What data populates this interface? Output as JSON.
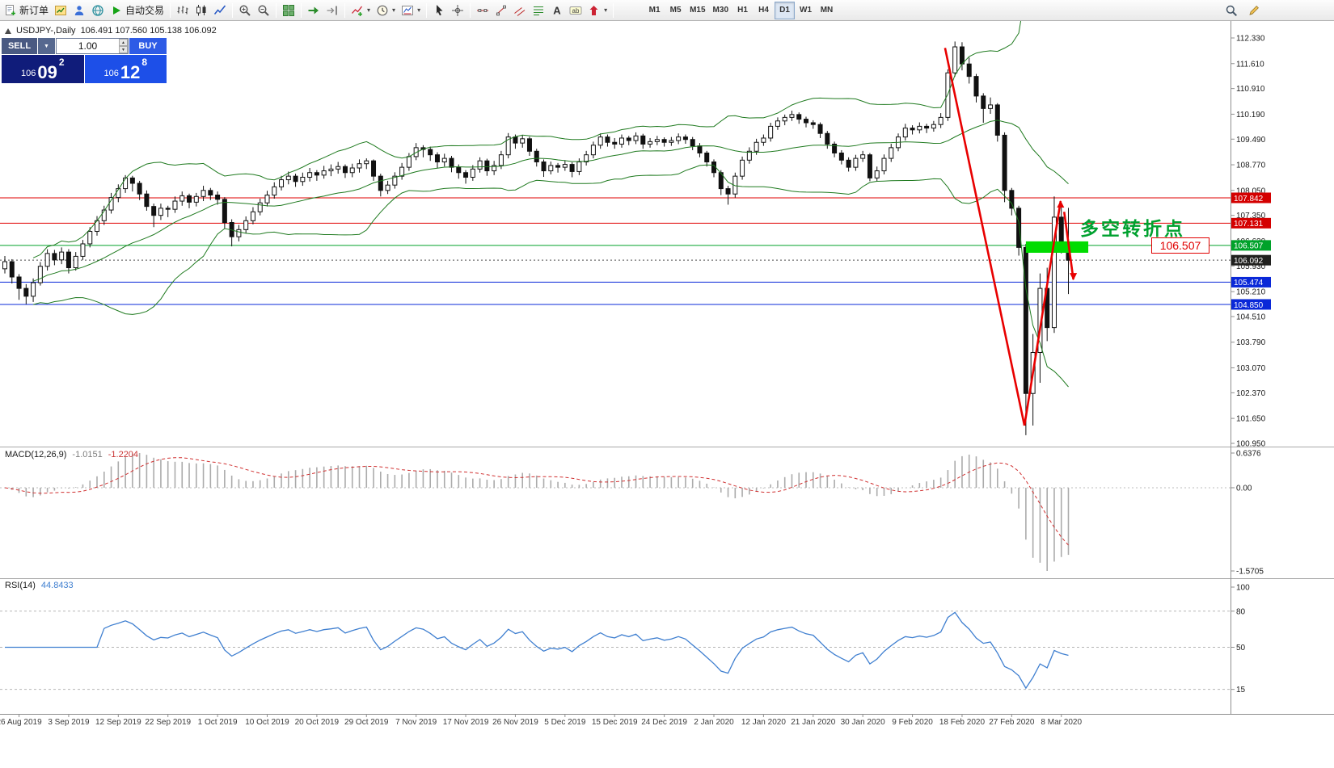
{
  "toolbar": {
    "groups": [
      {
        "items": [
          {
            "name": "new-order-button",
            "icon": "new-order",
            "label": "新订单"
          },
          {
            "name": "market-watch-button",
            "icon": "market-watch"
          },
          {
            "name": "navigator-button",
            "icon": "navigator"
          },
          {
            "name": "community-button",
            "icon": "globe"
          },
          {
            "name": "autotrading-button",
            "icon": "play",
            "label": "自动交易"
          }
        ]
      },
      {
        "items": [
          {
            "name": "bar-chart-button",
            "icon": "bars"
          },
          {
            "name": "candlestick-chart-button",
            "icon": "candles"
          },
          {
            "name": "line-chart-button",
            "icon": "linechart"
          }
        ]
      },
      {
        "items": [
          {
            "name": "zoom-in-button",
            "icon": "zoom-in"
          },
          {
            "name": "zoom-out-button",
            "icon": "zoom-out"
          }
        ]
      },
      {
        "items": [
          {
            "name": "tile-windows-button",
            "icon": "tile"
          }
        ]
      },
      {
        "items": [
          {
            "name": "auto-scroll-button",
            "icon": "autoscroll"
          },
          {
            "name": "chart-shift-button",
            "icon": "shift"
          }
        ]
      },
      {
        "items": [
          {
            "name": "indicators-button",
            "icon": "indicator",
            "caret": true
          },
          {
            "name": "periods-button",
            "icon": "clock",
            "caret": true
          },
          {
            "name": "templates-button",
            "icon": "template",
            "caret": true
          }
        ]
      },
      {
        "items": [
          {
            "name": "cursor-button",
            "icon": "cursor"
          },
          {
            "name": "crosshair-button",
            "icon": "crosshair"
          }
        ]
      },
      {
        "items": [
          {
            "name": "horizontal-line-button",
            "icon": "hline"
          },
          {
            "name": "trendline-button",
            "icon": "trendline"
          },
          {
            "name": "channel-button",
            "icon": "channel"
          },
          {
            "name": "fibonacci-button",
            "icon": "fibo"
          },
          {
            "name": "text-button",
            "icon": "textA"
          },
          {
            "name": "text-label-button",
            "icon": "label"
          },
          {
            "name": "arrows-button",
            "icon": "arrowobj",
            "caret": true
          }
        ]
      }
    ],
    "timeframes": [
      "M1",
      "M5",
      "M15",
      "M30",
      "H1",
      "H4",
      "D1",
      "W1",
      "MN"
    ],
    "active_timeframe": "D1",
    "right_icons": [
      {
        "name": "search-button",
        "icon": "search"
      },
      {
        "name": "quick-edit-button",
        "icon": "edit"
      }
    ]
  },
  "trade_panel": {
    "sell_label": "SELL",
    "buy_label": "BUY",
    "volume": "1.00",
    "sell_price_main": "106",
    "sell_price_big": "09",
    "sell_price_sup": "2",
    "buy_price_main": "106",
    "buy_price_big": "12",
    "buy_price_sup": "8",
    "colors": {
      "sell_button": "#4a5a82",
      "volume_dropdown": "#56688f",
      "buy_button": "#2e5be6",
      "sell_box": "#101c7a",
      "buy_box": "#1d4fe8"
    }
  },
  "chart": {
    "symbol_period": "USDJPY-,Daily",
    "ohlc_values": "106.491 107.560 105.138 106.092",
    "annotation": "多空转折点",
    "annotation_color": "#00a12f",
    "callout_price": "106.507"
  },
  "price_axis": {
    "ticks": [
      112.33,
      111.61,
      110.91,
      110.19,
      109.49,
      108.77,
      108.05,
      107.35,
      106.63,
      105.93,
      105.21,
      104.51,
      103.79,
      103.07,
      102.37,
      101.65,
      100.95
    ],
    "tags": [
      {
        "text": "107.842",
        "price": 107.842,
        "bg": "#d40000",
        "fg": "#ffffff"
      },
      {
        "text": "107.131",
        "price": 107.131,
        "bg": "#d40000",
        "fg": "#ffffff"
      },
      {
        "text": "106.507",
        "price": 106.507,
        "bg": "#00a22a",
        "fg": "#ffffff"
      },
      {
        "text": "106.092",
        "price": 106.092,
        "bg": "#20201e",
        "fg": "#ffffff"
      },
      {
        "text": "105.474",
        "price": 105.474,
        "bg": "#0a28d8",
        "fg": "#ffffff"
      },
      {
        "text": "104.850",
        "price": 104.85,
        "bg": "#0a28d8",
        "fg": "#ffffff"
      }
    ]
  },
  "chart_data": {
    "type": "candlestick",
    "symbol": "USDJPY-",
    "period": "Daily",
    "title": "USDJPY-,Daily 106.491 107.560 105.138 106.092",
    "ylim": [
      100.95,
      112.33
    ],
    "date_labels": [
      "26 Aug 2019",
      "3 Sep 2019",
      "12 Sep 2019",
      "22 Sep 2019",
      "1 Oct 2019",
      "10 Oct 2019",
      "20 Oct 2019",
      "29 Oct 2019",
      "7 Nov 2019",
      "17 Nov 2019",
      "26 Nov 2019",
      "5 Dec 2019",
      "15 Dec 2019",
      "24 Dec 2019",
      "2 Jan 2020",
      "12 Jan 2020",
      "21 Jan 2020",
      "30 Jan 2020",
      "9 Feb 2020",
      "18 Feb 2020",
      "27 Feb 2020",
      "8 Mar 2020"
    ],
    "first_label_index": 2,
    "label_step": 7,
    "ohlc": [
      [
        105.85,
        106.21,
        105.72,
        106.05
      ],
      [
        106.05,
        106.12,
        105.44,
        105.62
      ],
      [
        105.62,
        105.7,
        104.98,
        105.3
      ],
      [
        105.3,
        105.42,
        104.86,
        105.08
      ],
      [
        105.08,
        105.58,
        104.92,
        105.46
      ],
      [
        105.46,
        106.04,
        105.38,
        105.92
      ],
      [
        105.92,
        106.4,
        105.8,
        106.28
      ],
      [
        106.28,
        106.38,
        105.95,
        106.1
      ],
      [
        106.1,
        106.45,
        105.98,
        106.32
      ],
      [
        106.32,
        106.4,
        105.72,
        105.88
      ],
      [
        105.88,
        106.32,
        105.8,
        106.2
      ],
      [
        106.2,
        106.66,
        106.1,
        106.55
      ],
      [
        106.55,
        107.02,
        106.45,
        106.9
      ],
      [
        106.9,
        107.33,
        106.78,
        107.2
      ],
      [
        107.2,
        107.62,
        107.08,
        107.5
      ],
      [
        107.5,
        107.98,
        107.4,
        107.85
      ],
      [
        107.85,
        108.22,
        107.72,
        108.1
      ],
      [
        108.1,
        108.48,
        107.98,
        108.4
      ],
      [
        108.4,
        108.46,
        108.02,
        108.25
      ],
      [
        108.25,
        108.32,
        107.78,
        107.95
      ],
      [
        107.95,
        108.05,
        107.48,
        107.6
      ],
      [
        107.6,
        107.68,
        107.02,
        107.35
      ],
      [
        107.35,
        107.68,
        107.22,
        107.55
      ],
      [
        107.55,
        107.62,
        107.3,
        107.52
      ],
      [
        107.52,
        107.88,
        107.42,
        107.75
      ],
      [
        107.75,
        108.02,
        107.62,
        107.9
      ],
      [
        107.9,
        107.96,
        107.55,
        107.72
      ],
      [
        107.72,
        107.98,
        107.6,
        107.88
      ],
      [
        107.88,
        108.18,
        107.75,
        108.05
      ],
      [
        108.05,
        108.12,
        107.78,
        107.92
      ],
      [
        107.92,
        108.02,
        107.65,
        107.8
      ],
      [
        107.8,
        107.86,
        106.98,
        107.15
      ],
      [
        107.15,
        107.24,
        106.48,
        106.75
      ],
      [
        106.75,
        107.08,
        106.62,
        106.95
      ],
      [
        106.95,
        107.32,
        106.85,
        107.2
      ],
      [
        107.2,
        107.58,
        107.1,
        107.45
      ],
      [
        107.45,
        107.82,
        107.35,
        107.7
      ],
      [
        107.7,
        108.04,
        107.6,
        107.92
      ],
      [
        107.92,
        108.28,
        107.82,
        108.15
      ],
      [
        108.15,
        108.46,
        108.05,
        108.35
      ],
      [
        108.35,
        108.58,
        108.22,
        108.45
      ],
      [
        108.45,
        108.52,
        108.15,
        108.3
      ],
      [
        108.3,
        108.55,
        108.18,
        108.42
      ],
      [
        108.42,
        108.68,
        108.3,
        108.55
      ],
      [
        108.55,
        108.62,
        108.32,
        108.48
      ],
      [
        108.48,
        108.74,
        108.38,
        108.6
      ],
      [
        108.6,
        108.78,
        108.45,
        108.65
      ],
      [
        108.65,
        108.85,
        108.52,
        108.72
      ],
      [
        108.72,
        108.78,
        108.4,
        108.55
      ],
      [
        108.55,
        108.8,
        108.42,
        108.68
      ],
      [
        108.68,
        108.92,
        108.55,
        108.8
      ],
      [
        108.8,
        108.95,
        108.65,
        108.88
      ],
      [
        108.88,
        108.92,
        108.32,
        108.45
      ],
      [
        108.45,
        108.52,
        107.88,
        108.05
      ],
      [
        108.05,
        108.32,
        107.95,
        108.2
      ],
      [
        108.2,
        108.56,
        108.1,
        108.45
      ],
      [
        108.45,
        108.82,
        108.35,
        108.7
      ],
      [
        108.7,
        109.1,
        108.6,
        109.0
      ],
      [
        109.0,
        109.38,
        108.9,
        109.25
      ],
      [
        109.25,
        109.32,
        108.98,
        109.2
      ],
      [
        109.2,
        109.28,
        108.88,
        109.05
      ],
      [
        109.05,
        109.12,
        108.68,
        108.85
      ],
      [
        108.85,
        109.08,
        108.72,
        108.95
      ],
      [
        108.95,
        109.02,
        108.56,
        108.7
      ],
      [
        108.7,
        108.78,
        108.38,
        108.55
      ],
      [
        108.55,
        108.62,
        108.24,
        108.42
      ],
      [
        108.42,
        108.76,
        108.32,
        108.65
      ],
      [
        108.65,
        108.98,
        108.55,
        108.88
      ],
      [
        108.88,
        108.94,
        108.46,
        108.6
      ],
      [
        108.6,
        108.88,
        108.48,
        108.75
      ],
      [
        108.75,
        109.16,
        108.65,
        109.05
      ],
      [
        109.05,
        109.66,
        108.95,
        109.55
      ],
      [
        109.55,
        109.62,
        109.22,
        109.38
      ],
      [
        109.38,
        109.6,
        109.25,
        109.5
      ],
      [
        109.5,
        109.56,
        109.02,
        109.15
      ],
      [
        109.15,
        109.22,
        108.72,
        108.85
      ],
      [
        108.85,
        108.92,
        108.43,
        108.6
      ],
      [
        108.6,
        108.86,
        108.5,
        108.75
      ],
      [
        108.75,
        108.82,
        108.55,
        108.7
      ],
      [
        108.7,
        108.9,
        108.6,
        108.78
      ],
      [
        108.78,
        108.84,
        108.42,
        108.58
      ],
      [
        108.58,
        108.95,
        108.48,
        108.85
      ],
      [
        108.85,
        109.16,
        108.75,
        109.05
      ],
      [
        109.05,
        109.42,
        108.95,
        109.32
      ],
      [
        109.32,
        109.65,
        109.22,
        109.55
      ],
      [
        109.55,
        109.62,
        109.28,
        109.4
      ],
      [
        109.4,
        109.52,
        109.22,
        109.35
      ],
      [
        109.35,
        109.62,
        109.25,
        109.52
      ],
      [
        109.52,
        109.58,
        109.32,
        109.45
      ],
      [
        109.45,
        109.68,
        109.35,
        109.58
      ],
      [
        109.58,
        109.64,
        109.22,
        109.35
      ],
      [
        109.35,
        109.52,
        109.25,
        109.42
      ],
      [
        109.42,
        109.58,
        109.32,
        109.48
      ],
      [
        109.48,
        109.54,
        109.28,
        109.4
      ],
      [
        109.4,
        109.55,
        109.3,
        109.45
      ],
      [
        109.45,
        109.65,
        109.35,
        109.55
      ],
      [
        109.55,
        109.62,
        109.36,
        109.48
      ],
      [
        109.48,
        109.55,
        109.18,
        109.3
      ],
      [
        109.3,
        109.38,
        108.98,
        109.1
      ],
      [
        109.1,
        109.16,
        108.72,
        108.85
      ],
      [
        108.85,
        108.92,
        108.42,
        108.55
      ],
      [
        108.55,
        108.62,
        107.92,
        108.1
      ],
      [
        108.1,
        108.18,
        107.65,
        107.95
      ],
      [
        107.95,
        108.55,
        107.85,
        108.45
      ],
      [
        108.45,
        109.0,
        108.35,
        108.9
      ],
      [
        108.9,
        109.26,
        108.8,
        109.15
      ],
      [
        109.15,
        109.5,
        109.05,
        109.4
      ],
      [
        109.4,
        109.62,
        109.3,
        109.52
      ],
      [
        109.52,
        109.95,
        109.42,
        109.85
      ],
      [
        109.85,
        110.1,
        109.75,
        110.0
      ],
      [
        110.0,
        110.18,
        109.88,
        110.1
      ],
      [
        110.1,
        110.29,
        110.0,
        110.18
      ],
      [
        110.18,
        110.24,
        109.92,
        110.05
      ],
      [
        110.05,
        110.12,
        109.82,
        109.95
      ],
      [
        109.95,
        110.02,
        109.78,
        109.9
      ],
      [
        109.9,
        109.96,
        109.52,
        109.65
      ],
      [
        109.65,
        109.72,
        109.22,
        109.35
      ],
      [
        109.35,
        109.42,
        108.98,
        109.1
      ],
      [
        109.1,
        109.18,
        108.78,
        108.9
      ],
      [
        108.9,
        108.98,
        108.58,
        108.7
      ],
      [
        108.7,
        109.05,
        108.6,
        108.95
      ],
      [
        108.95,
        109.16,
        108.85,
        109.05
      ],
      [
        109.05,
        109.1,
        108.31,
        108.4
      ],
      [
        108.4,
        108.72,
        108.3,
        108.6
      ],
      [
        108.6,
        109.06,
        108.5,
        108.95
      ],
      [
        108.95,
        109.36,
        108.85,
        109.25
      ],
      [
        109.25,
        109.65,
        109.15,
        109.55
      ],
      [
        109.55,
        109.92,
        109.45,
        109.8
      ],
      [
        109.8,
        109.88,
        109.62,
        109.75
      ],
      [
        109.75,
        109.96,
        109.65,
        109.85
      ],
      [
        109.85,
        109.92,
        109.66,
        109.8
      ],
      [
        109.8,
        110.0,
        109.7,
        109.9
      ],
      [
        109.9,
        110.22,
        109.8,
        110.1
      ],
      [
        110.1,
        111.45,
        110.0,
        111.35
      ],
      [
        111.35,
        112.23,
        111.25,
        112.08
      ],
      [
        112.08,
        112.21,
        111.42,
        111.6
      ],
      [
        111.6,
        111.78,
        111.05,
        111.25
      ],
      [
        111.25,
        111.32,
        110.52,
        110.7
      ],
      [
        110.7,
        110.78,
        109.95,
        110.35
      ],
      [
        110.35,
        110.66,
        110.2,
        110.45
      ],
      [
        110.45,
        110.5,
        109.42,
        109.6
      ],
      [
        109.6,
        109.68,
        107.72,
        108.05
      ],
      [
        108.05,
        108.12,
        107.35,
        107.55
      ],
      [
        107.55,
        107.62,
        106.22,
        106.45
      ],
      [
        106.45,
        106.55,
        101.18,
        102.35
      ],
      [
        102.35,
        104.02,
        101.45,
        103.5
      ],
      [
        103.5,
        105.72,
        102.65,
        105.3
      ],
      [
        105.3,
        105.88,
        103.82,
        104.2
      ],
      [
        104.2,
        107.88,
        104.05,
        107.3
      ],
      [
        107.3,
        107.62,
        106.28,
        106.55
      ],
      [
        106.49,
        107.56,
        105.14,
        106.09
      ]
    ],
    "indicators": {
      "bollinger": {
        "period": 20,
        "deviation": 2,
        "color": "#1f7a1f"
      },
      "macd": {
        "label": "MACD(12,26,9)",
        "value_main": "-1.0151",
        "value_signal": "-1.2204",
        "scale_max": "0.6376",
        "scale_zero": "0.00",
        "scale_min": "-1.5705",
        "histogram_color": "#ababab",
        "signal_color": "#d03030"
      },
      "rsi": {
        "label": "RSI(14)",
        "value": "44.8433",
        "period": 14,
        "line_color": "#3f7fd0",
        "scale_labels": [
          "100",
          "80",
          "50",
          "15"
        ],
        "levels": [
          80,
          50,
          15
        ]
      }
    },
    "overlays": {
      "hlines": [
        {
          "price": 107.842,
          "color": "#e00000"
        },
        {
          "price": 107.131,
          "color": "#e00000"
        },
        {
          "price": 106.507,
          "color": "#00a22a"
        },
        {
          "price": 105.474,
          "color": "#0a28d8"
        },
        {
          "price": 104.85,
          "color": "#0a28d8"
        }
      ],
      "current_price": {
        "price": 106.092,
        "color": "#4a4a4a"
      },
      "rectangle": {
        "i1": 144.0,
        "i2": 152.8,
        "price_top": 106.62,
        "price_bottom": 106.3,
        "color": "#00dc00"
      },
      "arrows": {
        "color": "#e80000",
        "segments": [
          {
            "i1": 132.6,
            "p1": 112.05,
            "i2": 143.8,
            "p2": 101.45,
            "head": null
          },
          {
            "i1": 143.8,
            "p1": 101.45,
            "i2": 148.9,
            "p2": 107.75,
            "head": "up"
          },
          {
            "i1": 149.4,
            "p1": 107.45,
            "i2": 150.7,
            "p2": 105.55,
            "head": "down"
          }
        ]
      }
    }
  }
}
